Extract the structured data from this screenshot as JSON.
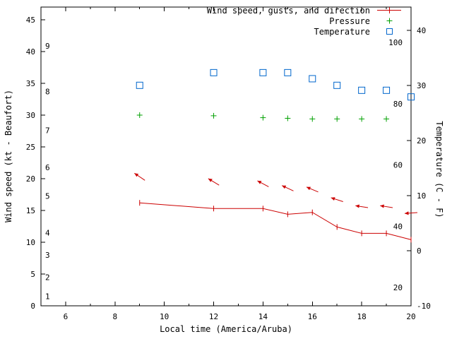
{
  "chart_data": {
    "type": "line",
    "title": "",
    "xlabel": "Local time (America/Aruba)",
    "ylabel": "Wind speed (kt - Beaufort)",
    "y2label": "Temperature (C - F)",
    "grid": false,
    "legend_position": "top-right",
    "x_range": [
      5,
      20
    ],
    "x_major_ticks": [
      6,
      8,
      10,
      12,
      14,
      16,
      18,
      20
    ],
    "x_minor_ticks": [
      5,
      7,
      9,
      11,
      13,
      15,
      17,
      19
    ],
    "y1_axis": {
      "unit": "kt",
      "range": [
        0,
        47
      ],
      "ticks": [
        0,
        5,
        10,
        15,
        20,
        25,
        30,
        35,
        40,
        45
      ]
    },
    "beaufort_labels": [
      {
        "label": "1",
        "kt": 1.5
      },
      {
        "label": "2",
        "kt": 4.5
      },
      {
        "label": "3",
        "kt": 8
      },
      {
        "label": "4",
        "kt": 11.5
      },
      {
        "label": "5",
        "kt": 17.3
      },
      {
        "label": "6",
        "kt": 21.8
      },
      {
        "label": "7",
        "kt": 27.6
      },
      {
        "label": "8",
        "kt": 33.7
      },
      {
        "label": "9",
        "kt": 40.9
      }
    ],
    "y2_axis": {
      "unit": "C",
      "range": [
        -10,
        44.2
      ],
      "ticks": [
        -10,
        0,
        10,
        20,
        30,
        40
      ]
    },
    "fahrenheit_labels": [
      20,
      40,
      60,
      80,
      100
    ],
    "legend": {
      "entries": [
        {
          "label": "Wind speed, gusts, and direction",
          "color": "#cc0000",
          "marker": "line-tick"
        },
        {
          "label": "Pressure",
          "color": "#00a000",
          "marker": "plus"
        },
        {
          "label": "Temperature",
          "color": "#0066cc",
          "marker": "open-square"
        }
      ]
    },
    "series": [
      {
        "name": "wind-speed",
        "axis": "y1",
        "style": "line-tick",
        "color": "#cc0000",
        "x": [
          9,
          12,
          14,
          15,
          16,
          17,
          18,
          19,
          20
        ],
        "y_kt": [
          16.2,
          15.3,
          15.3,
          14.4,
          14.7,
          12.4,
          11.4,
          11.4,
          10.4
        ]
      },
      {
        "name": "wind-gust-direction",
        "axis": "y1",
        "style": "arrow",
        "color": "#cc0000",
        "x": [
          9,
          12,
          14,
          15,
          16,
          17,
          18,
          19,
          20
        ],
        "y_kt": [
          20.3,
          19.5,
          19.2,
          18.5,
          18.3,
          16.7,
          15.6,
          15.6,
          14.6
        ],
        "angles_deg": [
          146,
          149,
          152,
          155,
          157,
          162,
          171,
          171,
          184
        ]
      },
      {
        "name": "pressure",
        "axis": "y1",
        "style": "plus",
        "color": "#00a000",
        "x": [
          9,
          12,
          14,
          15,
          16,
          17,
          18,
          19
        ],
        "y_kt": [
          30.0,
          29.9,
          29.6,
          29.5,
          29.4,
          29.4,
          29.4,
          29.4
        ]
      },
      {
        "name": "temperature",
        "axis": "y2",
        "style": "open-square",
        "color": "#0066cc",
        "x": [
          9,
          12,
          14,
          15,
          16,
          17,
          18,
          19,
          20
        ],
        "y_c": [
          30.0,
          32.3,
          32.3,
          32.3,
          31.2,
          30.0,
          29.1,
          29.1,
          27.9
        ]
      }
    ]
  }
}
